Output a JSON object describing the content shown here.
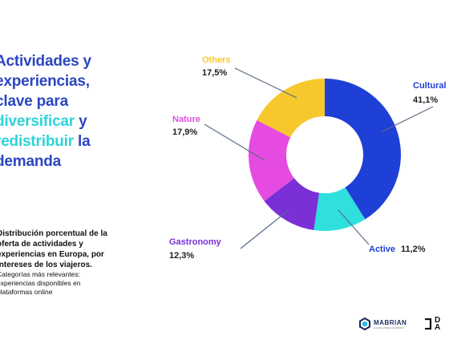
{
  "headline": {
    "line1": "Actividades y",
    "line2": "experiencias,",
    "line3": "clave para",
    "line4_hl": "diversificar",
    "line4_rest": " y",
    "line5_hl": "redistribuir",
    "line5_rest": " la",
    "line6": "demanda"
  },
  "caption": {
    "lead": "Distribución porcentual de la oferta de actividades y experiencias en Europa, por intereses de los viajeros.",
    "sub": "Categorías más relevantes: experiencias disponibles en plataformas online"
  },
  "chart_data": {
    "type": "donut",
    "categories": [
      "Cultural",
      "Active",
      "Gastronomy",
      "Nature",
      "Others"
    ],
    "values": [
      41.1,
      11.2,
      12.3,
      17.9,
      17.5
    ],
    "value_labels": [
      "41,1%",
      "11,2%",
      "12,3%",
      "17,9%",
      "17,5%"
    ],
    "colors": [
      "#1f40d6",
      "#2fe0dc",
      "#7b2fd6",
      "#e54be0",
      "#f6c82c"
    ],
    "label_colors": [
      "#1f40d6",
      "#1f40d6",
      "#7b2fd6",
      "#e54be0",
      "#f6c82c"
    ]
  },
  "footer": {
    "logo1": "MABRIAN",
    "logo1_tag": "A DATA APPEAL COMPANY",
    "logo2_top": "D",
    "logo2_bottom": "A"
  }
}
